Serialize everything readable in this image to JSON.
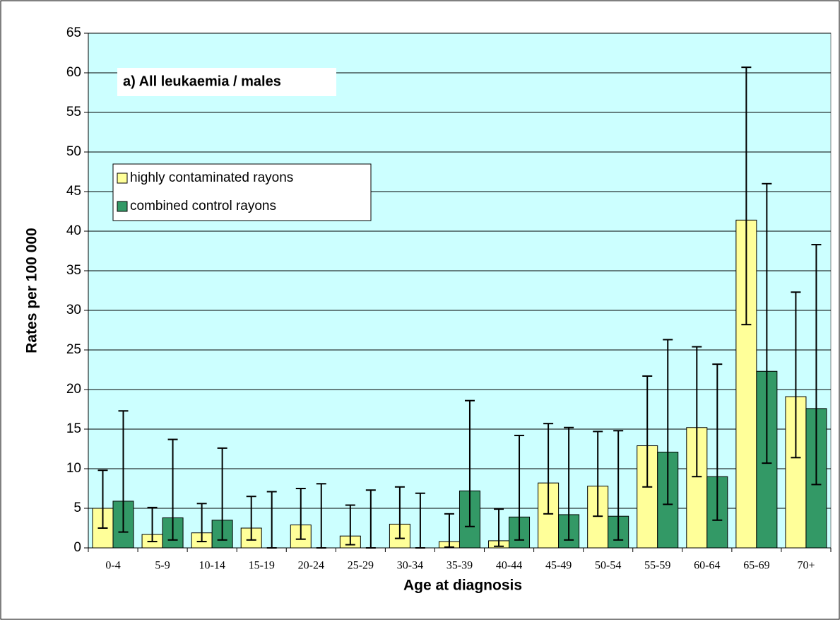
{
  "chart_data": {
    "type": "bar",
    "title": "a) All leukaemia / males",
    "x_label": "Age at diagnosis",
    "y_label": "Rates per 100 000",
    "categories": [
      "0-4",
      "5-9",
      "10-14",
      "15-19",
      "20-24",
      "25-29",
      "30-34",
      "35-39",
      "40-44",
      "45-49",
      "50-54",
      "55-59",
      "60-64",
      "65-69",
      "70+"
    ],
    "series": [
      {
        "name": "highly contaminated rayons",
        "color": "#ffff99",
        "values": [
          5.0,
          1.7,
          1.9,
          2.5,
          2.9,
          1.5,
          3.0,
          0.8,
          0.9,
          8.2,
          7.8,
          12.9,
          15.2,
          41.4,
          19.1
        ],
        "ci_low": [
          2.5,
          0.8,
          0.8,
          1.0,
          1.1,
          0.4,
          1.2,
          0.1,
          0.2,
          4.3,
          4.0,
          7.7,
          9.0,
          28.2,
          11.4
        ],
        "ci_high": [
          9.8,
          5.1,
          5.6,
          6.5,
          7.5,
          5.4,
          7.7,
          4.3,
          4.9,
          15.7,
          14.7,
          21.7,
          25.4,
          60.7,
          32.3
        ]
      },
      {
        "name": "combined control rayons",
        "color": "#339966",
        "values": [
          5.9,
          3.8,
          3.5,
          0,
          0,
          0,
          0,
          7.2,
          3.9,
          4.2,
          4.0,
          12.1,
          9.0,
          22.3,
          17.6
        ],
        "ci_low": [
          2.0,
          1.0,
          1.0,
          0,
          0,
          0,
          0,
          2.7,
          1.0,
          1.0,
          1.0,
          5.5,
          3.5,
          10.7,
          8.0
        ],
        "ci_high": [
          17.3,
          13.7,
          12.6,
          7.1,
          8.1,
          7.3,
          6.9,
          18.6,
          14.2,
          15.2,
          14.8,
          26.3,
          23.2,
          46.0,
          38.3
        ]
      }
    ],
    "ylim": [
      0,
      65
    ],
    "yticks": [
      0,
      5,
      10,
      15,
      20,
      25,
      30,
      35,
      40,
      45,
      50,
      55,
      60,
      65
    ],
    "grid": true,
    "plot_background": "#ccffff",
    "legend": "upper left"
  }
}
